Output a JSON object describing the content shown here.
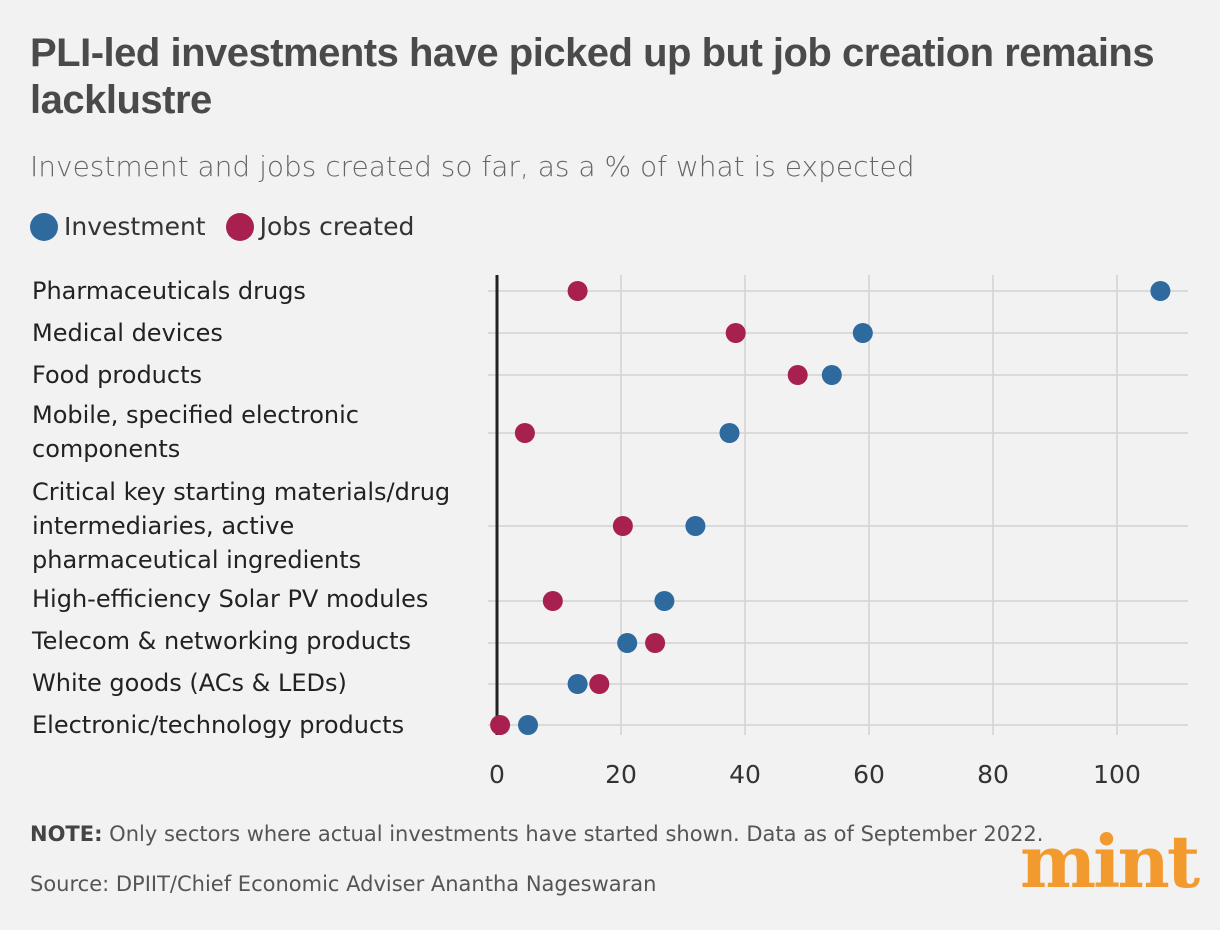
{
  "title": "PLI-led investments have picked up but job creation remains lacklustre",
  "subtitle": "Investment and jobs created so far, as a % of what is expected",
  "colors": {
    "investment": "#2e6a9e",
    "jobs": "#a8204f",
    "axis": "#222222",
    "grid": "#d2d2d2"
  },
  "chart_data": {
    "type": "scatter",
    "title": "Investment and jobs created so far, as a % of what is expected",
    "xlabel": "",
    "ylabel": "",
    "xlim": [
      0,
      110
    ],
    "xticks": [
      0,
      20,
      40,
      60,
      80,
      100
    ],
    "grid": true,
    "legend": "top-left",
    "categories": [
      "Pharmaceuticals drugs",
      "Medical devices",
      "Food products",
      "Mobile, specified electronic components",
      "Critical key starting materials/drug intermediaries, active pharmaceutical ingredients",
      "High-efficiency Solar PV modules",
      "Telecom & networking products",
      "White goods (ACs & LEDs)",
      "Electronic/technology products"
    ],
    "series": [
      {
        "name": "Investment",
        "values": [
          107,
          59,
          54,
          37.5,
          32,
          27,
          21,
          13,
          5
        ]
      },
      {
        "name": "Jobs created",
        "values": [
          13,
          38.5,
          48.5,
          4.5,
          20.3,
          9,
          25.5,
          16.5,
          0.5
        ]
      }
    ]
  },
  "note": {
    "label": "NOTE:",
    "text": " Only sectors where actual investments have started shown. Data as of September 2022."
  },
  "source": "Source: DPIIT/Chief Economic Adviser Anantha Nageswaran",
  "logo": "mint"
}
